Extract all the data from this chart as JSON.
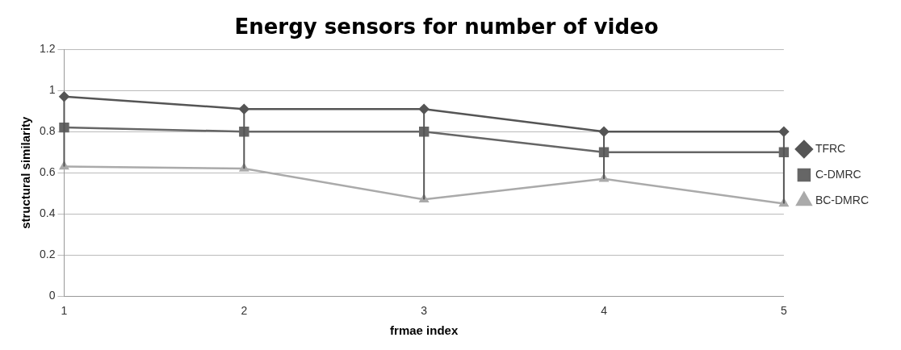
{
  "chart_data": {
    "type": "line",
    "title": "Energy sensors for number of video",
    "xlabel": "frmae index",
    "ylabel": "structural similarity",
    "categories": [
      "1",
      "2",
      "3",
      "4",
      "5"
    ],
    "series": [
      {
        "name": "TFRC",
        "color": "#555555",
        "marker": "diamond",
        "values": [
          0.97,
          0.91,
          0.91,
          0.8,
          0.8
        ],
        "errors": [
          [
            0.63,
            0.97
          ],
          [
            0.62,
            0.91
          ],
          [
            0.47,
            0.91
          ],
          [
            0.57,
            0.8
          ],
          [
            0.45,
            0.8
          ]
        ]
      },
      {
        "name": "C-DMRC",
        "color": "#666666",
        "marker": "square",
        "values": [
          0.82,
          0.8,
          0.8,
          0.7,
          0.7
        ]
      },
      {
        "name": "BC-DMRC",
        "color": "#aaaaaa",
        "marker": "triangle",
        "values": [
          0.63,
          0.62,
          0.47,
          0.57,
          0.45
        ]
      }
    ],
    "ylim": [
      0,
      1.2
    ],
    "yticks": [
      0,
      0.2,
      0.4,
      0.6,
      0.8,
      1,
      1.2
    ],
    "grid": "y",
    "legend": "right",
    "line_style": "solid"
  }
}
